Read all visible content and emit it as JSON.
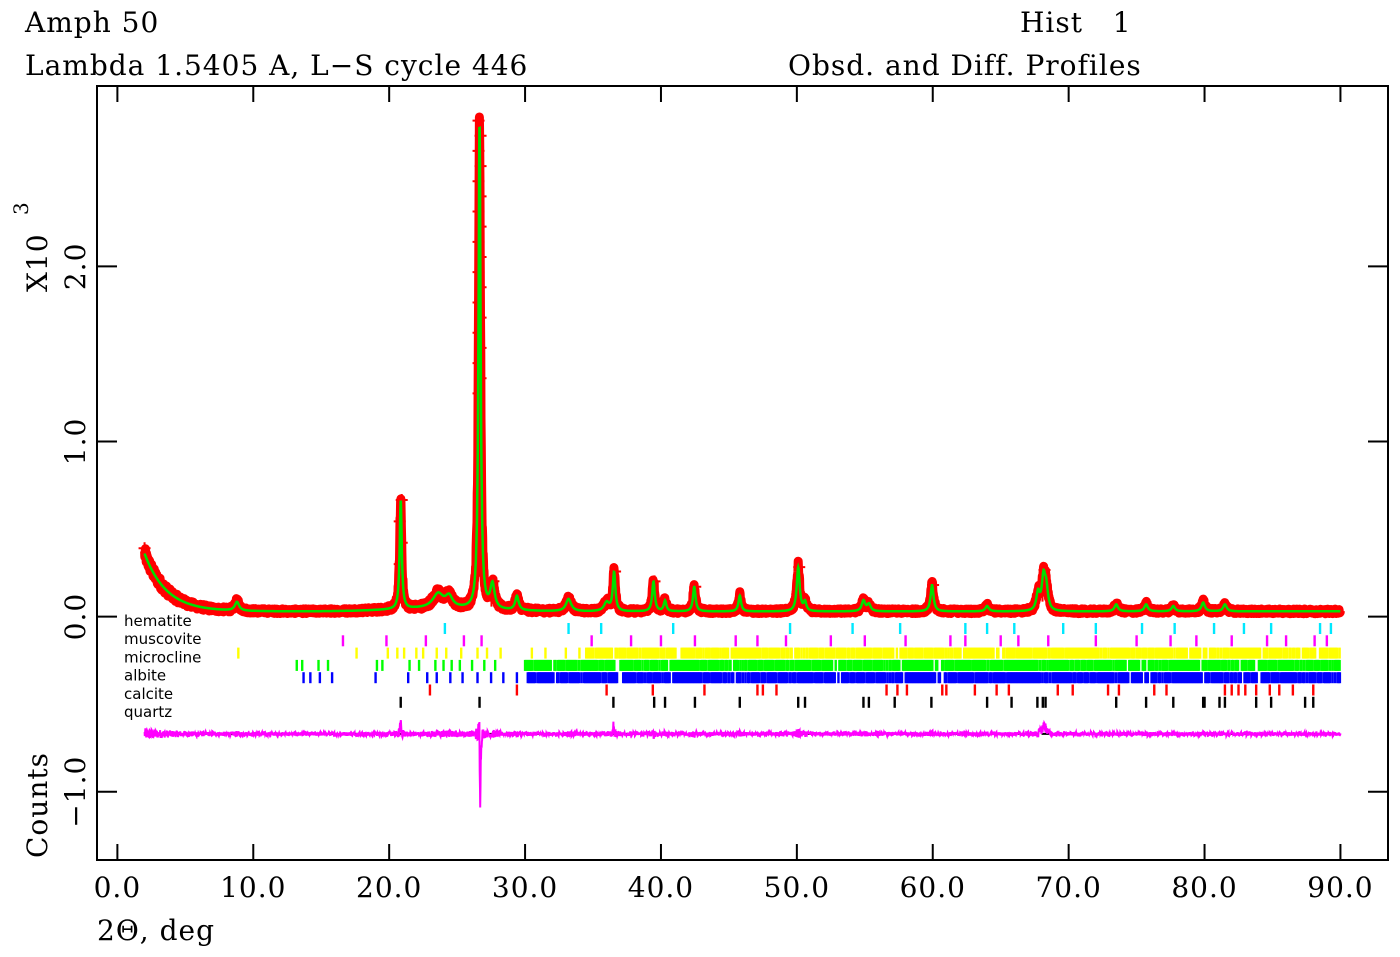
{
  "header": {
    "title": "Amph 50",
    "subtitle": "Lambda 1.5405 A, L−S cycle  446",
    "hist": "Hist   1",
    "profiles": "Obsd. and Diff. Profiles"
  },
  "chart_data": {
    "type": "line",
    "title": "Obsd. and Diff. Profiles",
    "xlabel": "2Θ, deg",
    "ylabel": "Counts",
    "yscale_label": "X10",
    "yscale_exp": "3",
    "xlim": [
      -1.5,
      93.5
    ],
    "ylim": [
      -1.39,
      3.03
    ],
    "xticks": [
      0,
      10,
      20,
      30,
      40,
      50,
      60,
      70,
      80,
      90
    ],
    "xtick_labels": [
      "0.0",
      "10.0",
      "20.0",
      "30.0",
      "40.0",
      "50.0",
      "60.0",
      "70.0",
      "80.0",
      "90.0"
    ],
    "yticks": [
      -1,
      0,
      1,
      2
    ],
    "ytick_labels": [
      "−1.0",
      "0.0",
      "1.0",
      "2.0"
    ],
    "x_range": [
      2.0,
      90.0
    ],
    "background": {
      "start": 0.36,
      "decay": 1.6,
      "floor": 0.03
    },
    "peaks": [
      [
        8.8,
        0.05,
        0.25
      ],
      [
        20.85,
        0.62,
        0.12
      ],
      [
        23.6,
        0.08,
        0.6
      ],
      [
        24.4,
        0.06,
        0.4
      ],
      [
        26.65,
        2.78,
        0.12
      ],
      [
        27.6,
        0.14,
        0.25
      ],
      [
        29.4,
        0.08,
        0.2
      ],
      [
        33.2,
        0.07,
        0.3
      ],
      [
        36.0,
        0.05,
        0.3
      ],
      [
        36.55,
        0.22,
        0.15
      ],
      [
        39.45,
        0.17,
        0.15
      ],
      [
        40.3,
        0.06,
        0.15
      ],
      [
        42.45,
        0.14,
        0.15
      ],
      [
        45.8,
        0.09,
        0.15
      ],
      [
        50.1,
        0.25,
        0.17
      ],
      [
        50.6,
        0.05,
        0.15
      ],
      [
        54.9,
        0.06,
        0.2
      ],
      [
        55.3,
        0.04,
        0.2
      ],
      [
        59.95,
        0.15,
        0.17
      ],
      [
        64.0,
        0.03,
        0.2
      ],
      [
        67.75,
        0.1,
        0.2
      ],
      [
        68.15,
        0.18,
        0.2
      ],
      [
        68.35,
        0.12,
        0.2
      ],
      [
        73.5,
        0.04,
        0.2
      ],
      [
        75.7,
        0.04,
        0.2
      ],
      [
        77.7,
        0.03,
        0.2
      ],
      [
        79.9,
        0.05,
        0.2
      ],
      [
        81.5,
        0.04,
        0.2
      ]
    ],
    "obs_color": "#ff0000",
    "calc_color": "#00e000",
    "diff_color": "#ff00ff",
    "diff_offset": -0.67,
    "phases": [
      {
        "name": "hematite",
        "color": "#00e8ff",
        "ticks": [
          24.1,
          33.2,
          35.6,
          40.9,
          49.5,
          54.1,
          57.6,
          62.4,
          64.0,
          66.0,
          69.6,
          72.0,
          75.4,
          77.8,
          80.7,
          82.9,
          84.9,
          88.5,
          89.3
        ],
        "dense": null
      },
      {
        "name": "muscovite",
        "color": "#ff00ff",
        "ticks": [
          16.6,
          19.8,
          22.7,
          25.5,
          26.8,
          34.9,
          37.8,
          40.0,
          42.5,
          45.5,
          47.1,
          49.2,
          52.5,
          55.0,
          58.0,
          61.3,
          62.4,
          65.0,
          66.3,
          68.5,
          72.0,
          75.0,
          77.5,
          79.4,
          82.0,
          84.6,
          86.0,
          88.1,
          89.0
        ],
        "dense": null
      },
      {
        "name": "microcline",
        "color": "#ffff00",
        "ticks": [
          8.9,
          17.6,
          19.9,
          20.6,
          21.1,
          22.0,
          22.5,
          23.5,
          24.2,
          25.3,
          26.5,
          27.2,
          28.2,
          30.5,
          31.5,
          33.0,
          34.0
        ],
        "dense": [
          34.5,
          90.0
        ]
      },
      {
        "name": "albite",
        "color": "#00ff00",
        "ticks": [
          13.2,
          13.6,
          14.8,
          15.5,
          19.1,
          19.5,
          21.5,
          22.2,
          23.4,
          24.0,
          24.6,
          25.2,
          26.1,
          27.0,
          27.8
        ],
        "dense": [
          30.0,
          90.0
        ]
      },
      {
        "name": "calcite",
        "color": "#0000ff",
        "ticks": [
          13.7,
          14.2,
          14.9,
          15.8,
          19.0,
          21.4,
          22.8,
          23.5,
          24.5,
          25.4,
          26.5,
          27.5,
          28.4,
          29.4
        ],
        "dense": [
          30.2,
          90.0
        ]
      },
      {
        "name": "quartz",
        "color": "#ff0000",
        "ticks": [
          23.0,
          29.4,
          36.0,
          39.4,
          43.2,
          47.1,
          47.5,
          48.5,
          56.6,
          57.4,
          58.1,
          60.7,
          61.0,
          63.1,
          64.7,
          65.6,
          69.2,
          70.3,
          72.9,
          73.7,
          76.3,
          77.2,
          81.5,
          82.0,
          82.5,
          83.0,
          83.8,
          84.8,
          85.5,
          86.5,
          88.0
        ],
        "dense": null
      },
      {
        "name": "",
        "color": "#000000",
        "ticks": [
          20.85,
          26.65,
          36.5,
          39.5,
          40.3,
          42.5,
          45.8,
          50.1,
          50.6,
          54.9,
          55.3,
          57.2,
          59.9,
          64.0,
          65.8,
          67.7,
          68.1,
          68.3,
          73.5,
          75.7,
          77.7,
          79.9,
          80.0,
          81.1,
          81.5,
          83.8,
          84.9,
          87.4,
          88.0
        ],
        "dense": null
      }
    ]
  }
}
